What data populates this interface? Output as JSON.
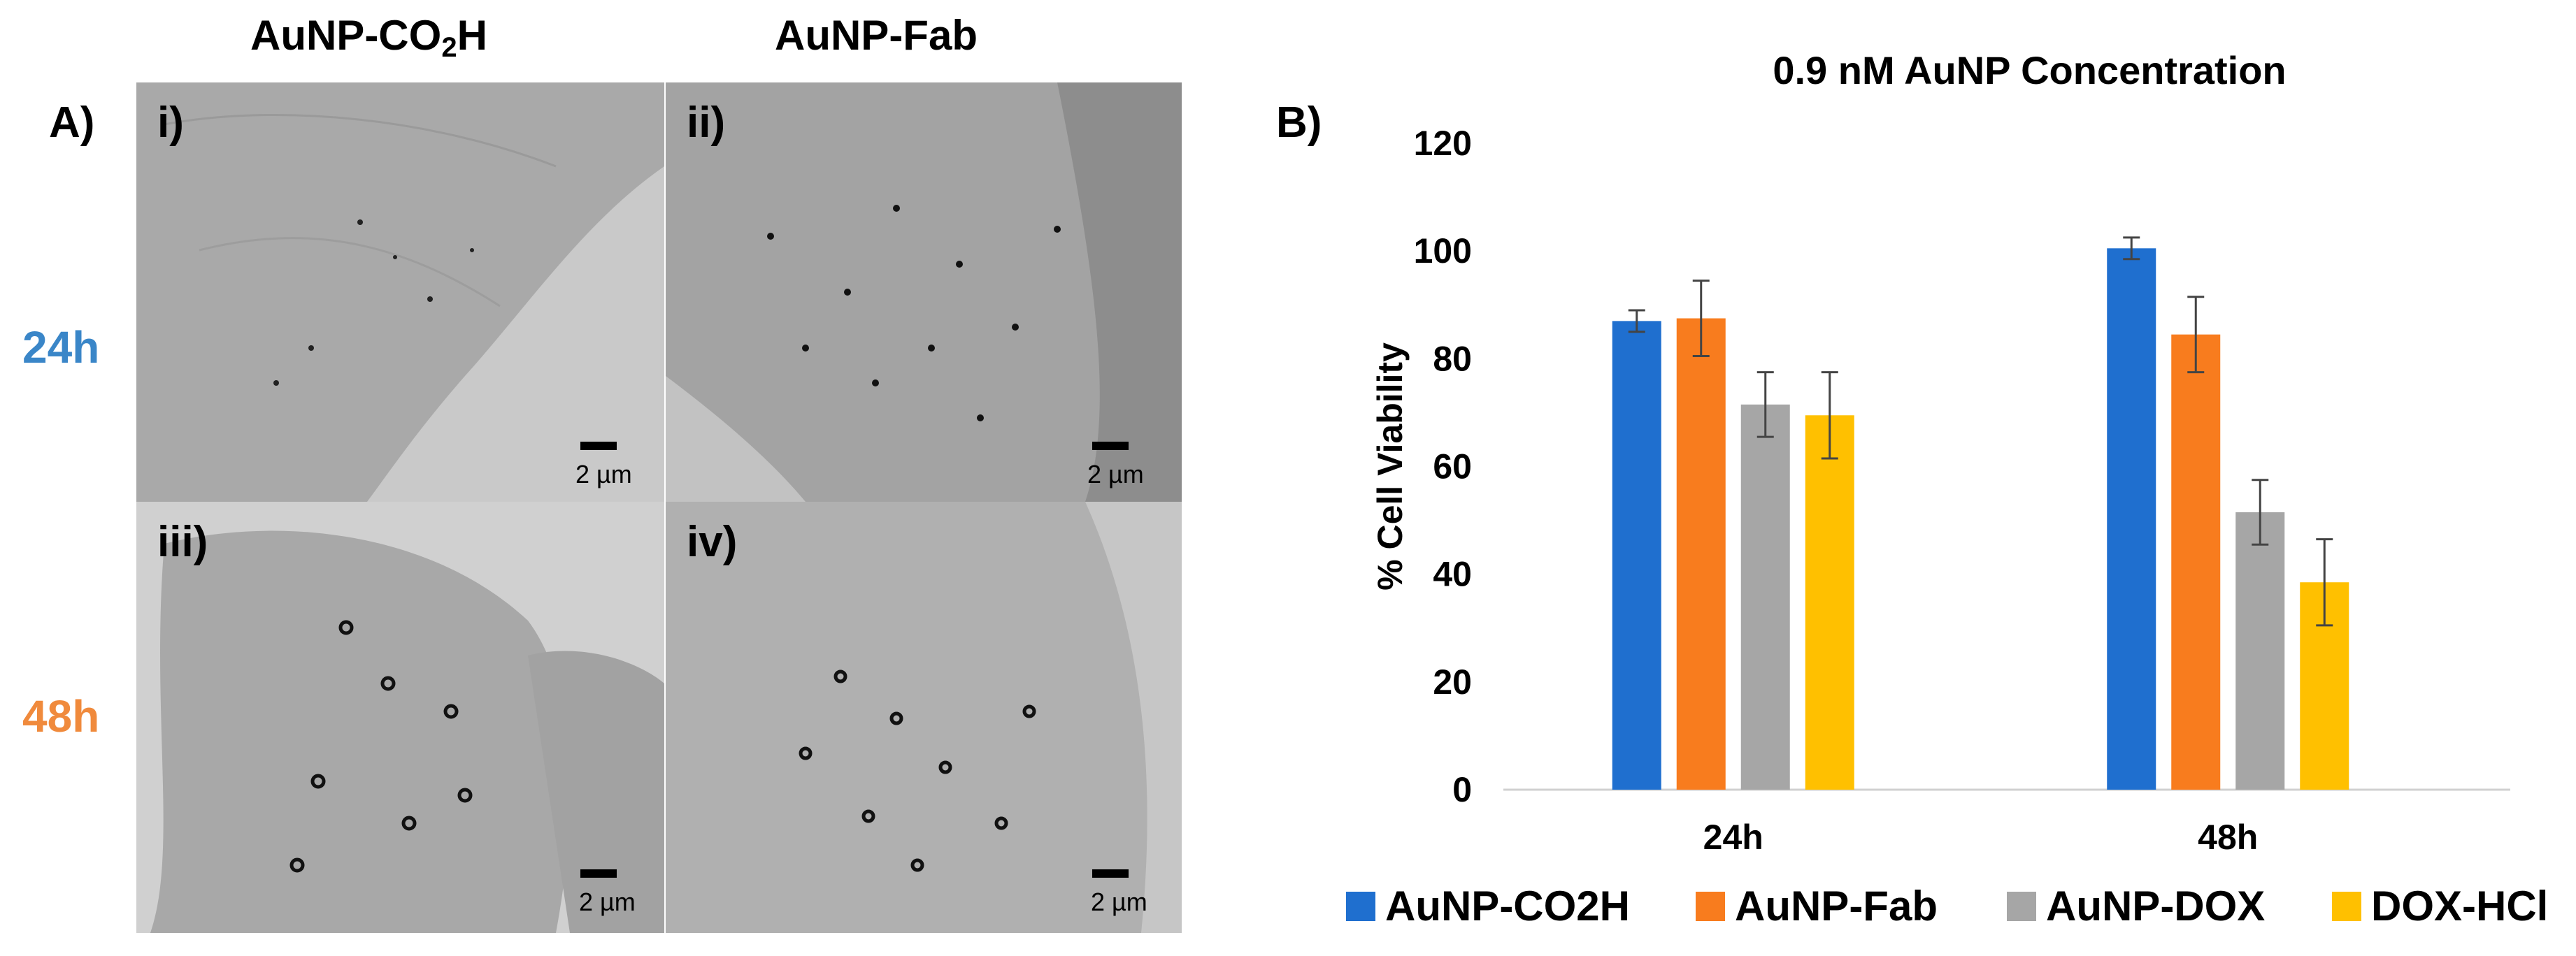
{
  "panel_a": {
    "letter": "A)",
    "col_heads": {
      "left_main": "AuNP-CO",
      "left_sub": "2",
      "left_tail": "H",
      "right": "AuNP-Fab"
    },
    "row_labels": {
      "top": "24h",
      "bottom": "48h",
      "top_color": "#3a86c8",
      "bottom_color": "#f08a3c"
    },
    "images": [
      {
        "roman": "i)",
        "scale": "2 µm"
      },
      {
        "roman": "ii)",
        "scale": "2 µm"
      },
      {
        "roman": "iii)",
        "scale": "2 µm"
      },
      {
        "roman": "iv)",
        "scale": "2 µm"
      }
    ]
  },
  "panel_b": {
    "letter": "B)"
  },
  "chart_data": {
    "type": "bar",
    "title": "0.9 nM AuNP Concentration",
    "xlabel": "",
    "ylabel": "% Cell Viability",
    "ylim": [
      0,
      120
    ],
    "yticks": [
      "0",
      "20",
      "40",
      "60",
      "80",
      "100",
      "120"
    ],
    "categories": [
      "24h",
      "48h"
    ],
    "series": [
      {
        "name": "AuNP-CO2H",
        "color": "#1f6fcf",
        "values": [
          87,
          100.5
        ],
        "errors": [
          2,
          2
        ]
      },
      {
        "name": "AuNP-Fab",
        "color": "#f87c1e",
        "values": [
          87.5,
          84.5
        ],
        "errors": [
          7,
          7
        ]
      },
      {
        "name": "AuNP-DOX",
        "color": "#a6a6a6",
        "values": [
          71.5,
          51.5
        ],
        "errors": [
          6,
          6
        ]
      },
      {
        "name": "DOX-HCl",
        "color": "#ffc000",
        "values": [
          69.5,
          38.5
        ],
        "errors": [
          8,
          8
        ]
      }
    ],
    "grid": false,
    "legend_position": "bottom"
  }
}
